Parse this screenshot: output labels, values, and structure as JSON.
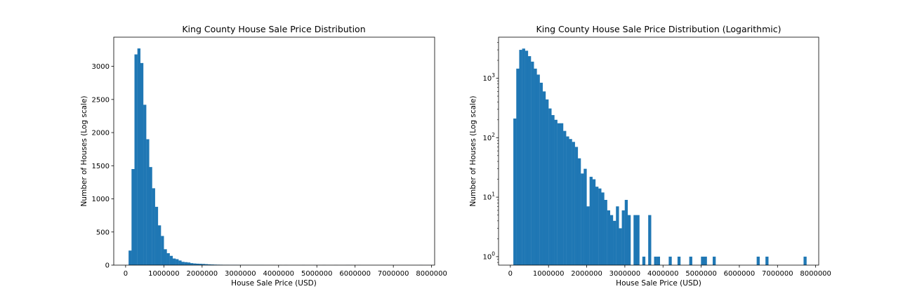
{
  "chart_data": [
    {
      "type": "bar",
      "title": "King County House Sale Price Distribution",
      "xlabel": "House Sale Price (USD)",
      "ylabel": "Number of Houses (Log scale)",
      "xlim": [
        -310000,
        8080000
      ],
      "ylim": [
        0,
        3440
      ],
      "yscale": "linear",
      "grid": false,
      "bin_start": 78000,
      "bin_width": 76820,
      "x_ticks": [
        0,
        1000000,
        2000000,
        3000000,
        4000000,
        5000000,
        6000000,
        7000000,
        8000000
      ],
      "x_tick_labels": [
        "0",
        "1000000",
        "2000000",
        "3000000",
        "4000000",
        "5000000",
        "6000000",
        "7000000",
        "8000000"
      ],
      "y_ticks": [
        0,
        500,
        1000,
        1500,
        2000,
        2500,
        3000
      ],
      "y_tick_labels": [
        "0",
        "500",
        "1000",
        "1500",
        "2000",
        "2500",
        "3000"
      ],
      "color": "#1f77b4",
      "values": [
        220,
        1450,
        3180,
        3270,
        3050,
        2420,
        1900,
        1480,
        1160,
        880,
        600,
        440,
        240,
        180,
        140,
        100,
        90,
        70,
        50,
        45,
        40,
        30,
        25,
        22,
        20,
        18,
        15,
        12,
        10,
        8,
        7,
        6,
        5,
        5,
        4,
        4,
        4,
        3,
        3,
        3,
        3,
        2,
        2,
        2,
        2,
        2,
        1,
        1,
        1,
        1,
        0,
        1,
        0,
        1,
        0,
        0,
        0,
        0,
        0,
        1,
        0,
        0,
        0,
        1,
        0,
        0,
        1,
        0,
        0,
        0,
        1,
        0,
        0,
        0,
        1,
        1,
        0,
        0,
        1,
        0,
        0,
        0,
        0,
        0,
        0,
        0,
        0,
        0,
        0,
        0,
        0,
        0,
        0,
        0,
        0,
        0,
        0,
        0,
        0,
        1
      ]
    },
    {
      "type": "bar",
      "title": "King County House Sale Price Distribution (Logarithmic)",
      "xlabel": "House Sale Price (USD)",
      "ylabel": "Number of Houses (Log scale)",
      "xlim": [
        -310000,
        8080000
      ],
      "ylim": [
        0.72,
        4900
      ],
      "yscale": "log",
      "grid": false,
      "bin_start": 78000,
      "bin_width": 76820,
      "x_ticks": [
        0,
        1000000,
        2000000,
        3000000,
        4000000,
        5000000,
        6000000,
        7000000,
        8000000
      ],
      "x_tick_labels": [
        "0",
        "1000000",
        "2000000",
        "3000000",
        "4000000",
        "5000000",
        "6000000",
        "7000000",
        "8000000"
      ],
      "y_ticks": [
        1,
        10,
        100,
        1000
      ],
      "y_tick_base": "10",
      "y_tick_exponents": [
        "0",
        "1",
        "2",
        "3"
      ],
      "color": "#1f77b4",
      "values": [
        210,
        1450,
        3000,
        3150,
        2900,
        2350,
        1900,
        1450,
        1150,
        840,
        600,
        440,
        310,
        240,
        200,
        175,
        175,
        130,
        105,
        95,
        85,
        70,
        45,
        25,
        30,
        7,
        22,
        20,
        15,
        14,
        12,
        9,
        6,
        5,
        4,
        7,
        3,
        6,
        9,
        5,
        0,
        5,
        5,
        0,
        1,
        0,
        5,
        0,
        1,
        1,
        0,
        0,
        0,
        1,
        0,
        0,
        1,
        0,
        0,
        0,
        1,
        0,
        0,
        0,
        1,
        1,
        0,
        0,
        1,
        0,
        0,
        0,
        0,
        0,
        0,
        0,
        0,
        0,
        0,
        0,
        0,
        0,
        0,
        1,
        0,
        0,
        1,
        0,
        0,
        0,
        0,
        0,
        0,
        0,
        0,
        0,
        0,
        0,
        0,
        1
      ]
    }
  ]
}
